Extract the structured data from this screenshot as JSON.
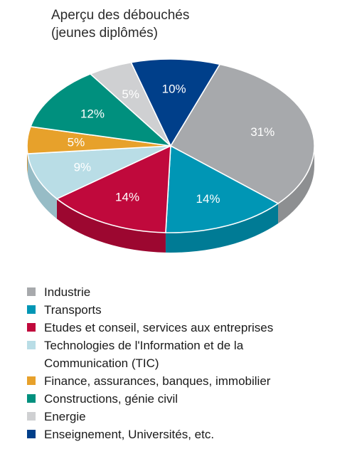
{
  "chart_data": {
    "type": "pie",
    "title_lines": [
      "Aperçu des débouchés",
      "(jeunes diplômés)"
    ],
    "slices": [
      {
        "label": "Industrie",
        "value": 31,
        "value_label": "31%",
        "color": "#a7a9ac",
        "side": "#8d8f91"
      },
      {
        "label": "Transports",
        "value": 14,
        "value_label": "14%",
        "color": "#0096b5",
        "side": "#007b95"
      },
      {
        "label": "Etudes et conseil, services aux entreprises",
        "value": 14,
        "value_label": "14%",
        "color": "#c0093c",
        "side": "#9c0730"
      },
      {
        "label": "Technologies de l'Information et de la\nCommunication (TIC)",
        "value": 9,
        "value_label": "9%",
        "color": "#b9dde6",
        "side": "#97bcc6"
      },
      {
        "label": "Finance, assurances, banques, immobilier",
        "value": 5,
        "value_label": "5%",
        "color": "#e7a12b",
        "side": "#c48621"
      },
      {
        "label": "Constructions, génie civil",
        "value": 12,
        "value_label": "12%",
        "color": "#00907e",
        "side": "#007264"
      },
      {
        "label": "Energie",
        "value": 5,
        "value_label": "5%",
        "color": "#cfd0d2",
        "side": "#b0b1b3"
      },
      {
        "label": "Enseignement, Universités, etc.",
        "value": 10,
        "value_label": "10%",
        "color": "#003f8a",
        "side": "#002f69"
      }
    ],
    "legend_position": "bottom-left"
  }
}
